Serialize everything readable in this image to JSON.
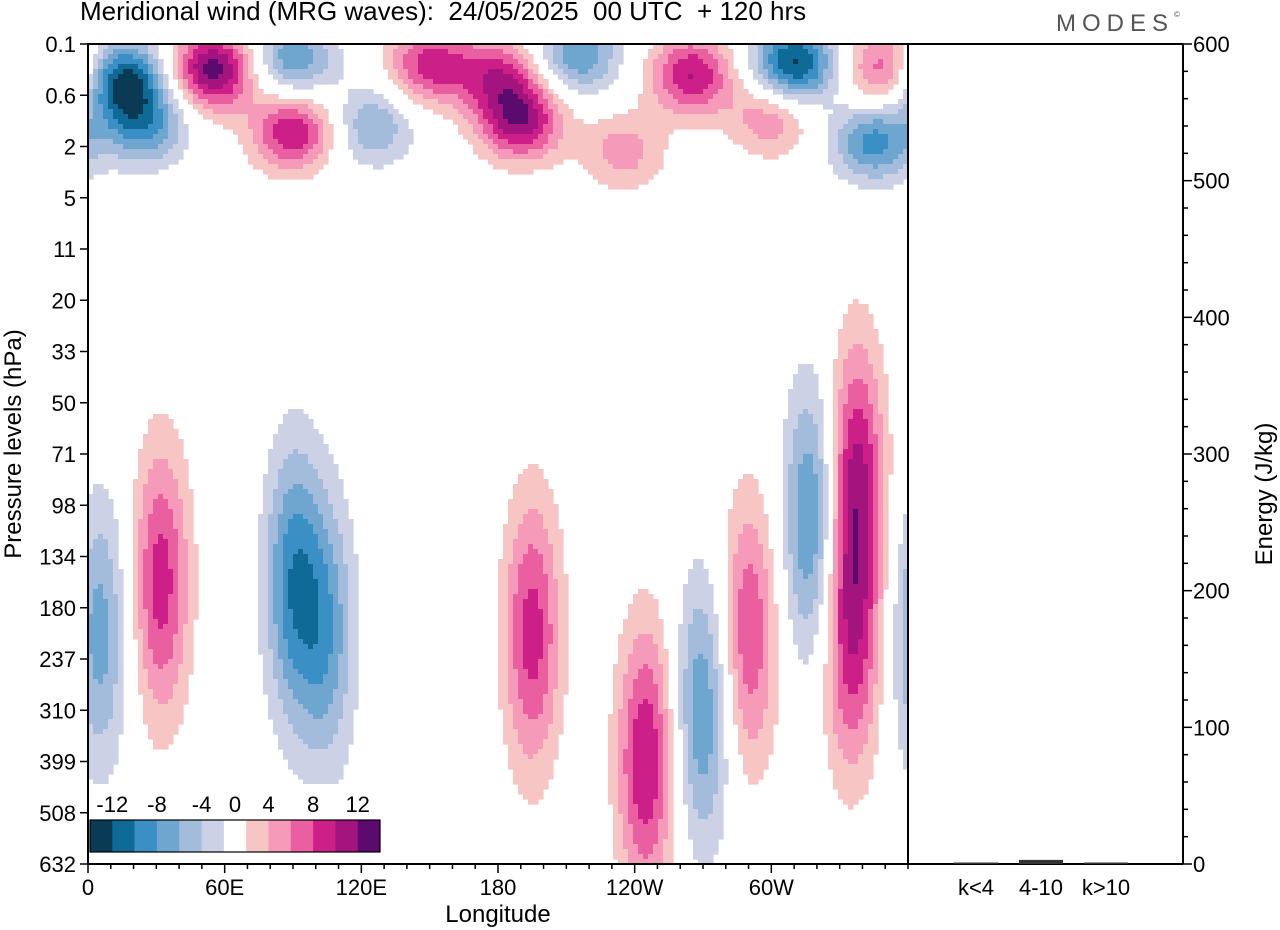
{
  "title": "Meridional wind (MRG waves):  24/05/2025  00 UTC  + 120 hrs",
  "brand": "MODES",
  "brand_mark": "©",
  "colors": {
    "neg": [
      "#0b3a55",
      "#0f6a97",
      "#3a8fc4",
      "#6ea6cf",
      "#a3bcdb",
      "#ccd1e6"
    ],
    "pos": [
      "#f8c5c5",
      "#f59ab8",
      "#ea5f9f",
      "#cc1f88",
      "#a4147e",
      "#5b0a6e"
    ],
    "zero": "#ffffff"
  },
  "chart_data": [
    {
      "type": "heatmap",
      "title": "Meridional wind (MRG waves):  24/05/2025  00 UTC  + 120 hrs",
      "xlabel": "Longitude",
      "ylabel": "Pressure levels (hPa)",
      "x_ticks": [
        "0",
        "60E",
        "120E",
        "180",
        "120W",
        "60W"
      ],
      "x_tick_values": [
        0,
        60,
        120,
        180,
        240,
        300
      ],
      "xlim": [
        0,
        360
      ],
      "y_ticks": [
        "0.1",
        "0.6",
        "2",
        "5",
        "11",
        "20",
        "33",
        "50",
        "71",
        "98",
        "134",
        "180",
        "237",
        "310",
        "399",
        "508",
        "632"
      ],
      "y_scale": "level-index",
      "colorbar": {
        "labels": [
          "-12",
          "-8",
          "-4",
          "0",
          "4",
          "8",
          "12"
        ],
        "values": [
          -12,
          -8,
          -4,
          0,
          4,
          8,
          12
        ],
        "bin_edges": [
          -14,
          -12,
          -10,
          -8,
          -6,
          -4,
          -2,
          2,
          4,
          6,
          8,
          10,
          12,
          14
        ],
        "placement": "bottom-left"
      },
      "features": [
        {
          "lon": 15,
          "level": 0.7,
          "value": -13
        },
        {
          "lon": 25,
          "level": 1.6,
          "value": -8
        },
        {
          "lon": 55,
          "level": 0.5,
          "value": 13
        },
        {
          "lon": 90,
          "level": 0.3,
          "value": -8
        },
        {
          "lon": 90,
          "level": 1.7,
          "value": 10
        },
        {
          "lon": 125,
          "level": 1.6,
          "value": -6
        },
        {
          "lon": 150,
          "level": 0.4,
          "value": 9
        },
        {
          "lon": 180,
          "level": 0.6,
          "value": 8
        },
        {
          "lon": 190,
          "level": 1.5,
          "value": 11
        },
        {
          "lon": 215,
          "level": 0.2,
          "value": -8
        },
        {
          "lon": 235,
          "level": 2.1,
          "value": 5
        },
        {
          "lon": 265,
          "level": 0.6,
          "value": 10
        },
        {
          "lon": 310,
          "level": 0.4,
          "value": -13
        },
        {
          "lon": 300,
          "level": 1.4,
          "value": 6
        },
        {
          "lon": 345,
          "level": 1.9,
          "value": -9
        },
        {
          "lon": 350,
          "level": 0.5,
          "value": 8
        },
        {
          "lon": 32,
          "level": 10.5,
          "value": 9
        },
        {
          "lon": 5,
          "level": 11.5,
          "value": -7
        },
        {
          "lon": 90,
          "level": 10.5,
          "value": -9
        },
        {
          "lon": 105,
          "level": 11.5,
          "value": -7
        },
        {
          "lon": 195,
          "level": 11.5,
          "value": 9
        },
        {
          "lon": 245,
          "level": 14,
          "value": 10
        },
        {
          "lon": 270,
          "level": 13.0,
          "value": -8
        },
        {
          "lon": 290,
          "level": 11.5,
          "value": 8
        },
        {
          "lon": 318,
          "level": 9.3,
          "value": -9
        },
        {
          "lon": 337,
          "level": 8.4,
          "value": 10
        },
        {
          "lon": 335,
          "level": 11.6,
          "value": 9
        }
      ]
    },
    {
      "type": "bar",
      "categories": [
        "k<4",
        "4-10",
        "k>10"
      ],
      "values": [
        1,
        3,
        0
      ],
      "ylabel": "Energy (J/kg)",
      "ylim": [
        0,
        600
      ],
      "y_ticks": [
        "0",
        "100",
        "200",
        "300",
        "400",
        "500",
        "600"
      ]
    }
  ]
}
